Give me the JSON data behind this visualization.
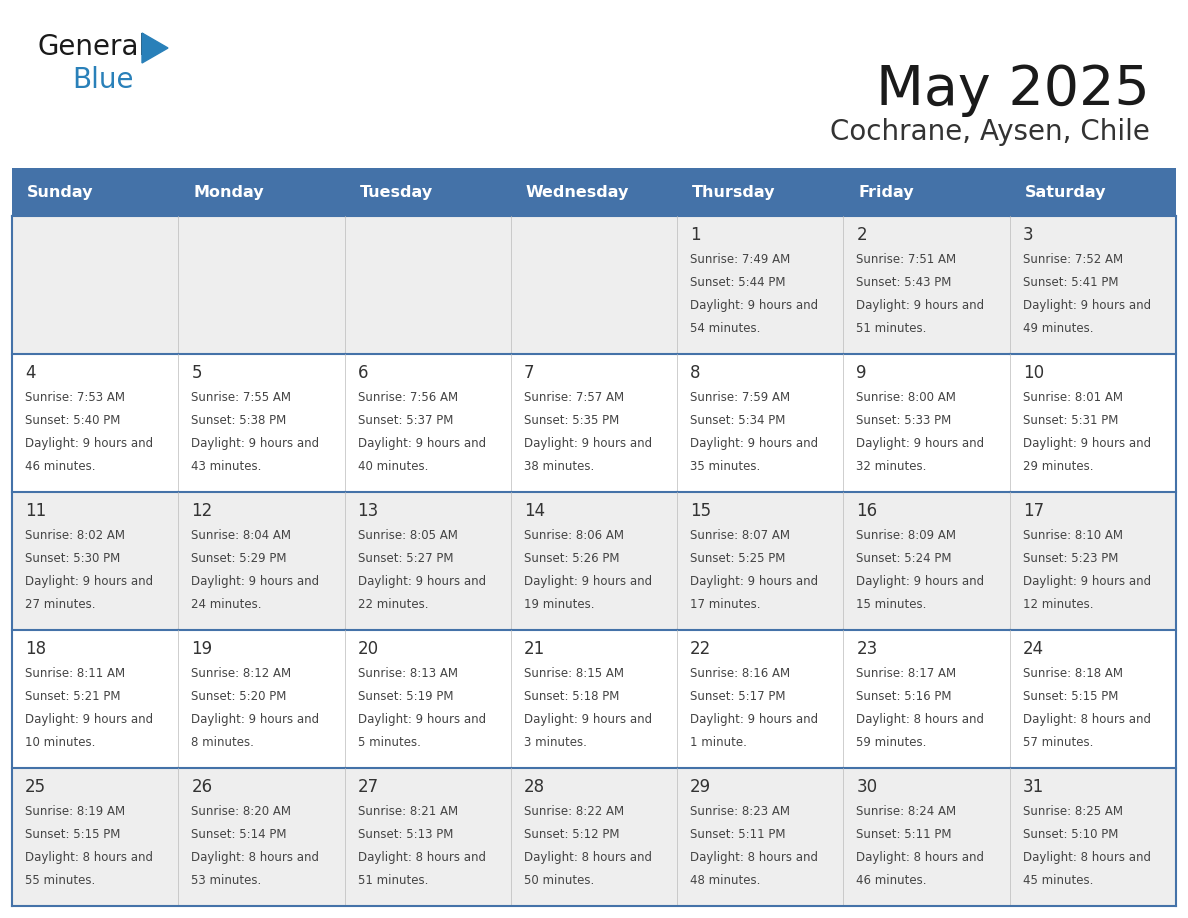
{
  "title": "May 2025",
  "subtitle": "Cochrane, Aysen, Chile",
  "days_of_week": [
    "Sunday",
    "Monday",
    "Tuesday",
    "Wednesday",
    "Thursday",
    "Friday",
    "Saturday"
  ],
  "header_bg": "#4472a8",
  "header_text": "#ffffff",
  "cell_bg_row0": "#eeeeee",
  "cell_bg_row1": "#ffffff",
  "cell_border": "#4472a8",
  "day_num_color": "#333333",
  "info_text_color": "#444444",
  "title_color": "#1a1a1a",
  "subtitle_color": "#333333",
  "logo_general_color": "#1a1a1a",
  "logo_blue_color": "#2980b9",
  "weeks": [
    [
      null,
      null,
      null,
      null,
      {
        "day": 1,
        "sunrise": "7:49 AM",
        "sunset": "5:44 PM",
        "daylight": "9 hours and 54 minutes."
      },
      {
        "day": 2,
        "sunrise": "7:51 AM",
        "sunset": "5:43 PM",
        "daylight": "9 hours and 51 minutes."
      },
      {
        "day": 3,
        "sunrise": "7:52 AM",
        "sunset": "5:41 PM",
        "daylight": "9 hours and 49 minutes."
      }
    ],
    [
      {
        "day": 4,
        "sunrise": "7:53 AM",
        "sunset": "5:40 PM",
        "daylight": "9 hours and 46 minutes."
      },
      {
        "day": 5,
        "sunrise": "7:55 AM",
        "sunset": "5:38 PM",
        "daylight": "9 hours and 43 minutes."
      },
      {
        "day": 6,
        "sunrise": "7:56 AM",
        "sunset": "5:37 PM",
        "daylight": "9 hours and 40 minutes."
      },
      {
        "day": 7,
        "sunrise": "7:57 AM",
        "sunset": "5:35 PM",
        "daylight": "9 hours and 38 minutes."
      },
      {
        "day": 8,
        "sunrise": "7:59 AM",
        "sunset": "5:34 PM",
        "daylight": "9 hours and 35 minutes."
      },
      {
        "day": 9,
        "sunrise": "8:00 AM",
        "sunset": "5:33 PM",
        "daylight": "9 hours and 32 minutes."
      },
      {
        "day": 10,
        "sunrise": "8:01 AM",
        "sunset": "5:31 PM",
        "daylight": "9 hours and 29 minutes."
      }
    ],
    [
      {
        "day": 11,
        "sunrise": "8:02 AM",
        "sunset": "5:30 PM",
        "daylight": "9 hours and 27 minutes."
      },
      {
        "day": 12,
        "sunrise": "8:04 AM",
        "sunset": "5:29 PM",
        "daylight": "9 hours and 24 minutes."
      },
      {
        "day": 13,
        "sunrise": "8:05 AM",
        "sunset": "5:27 PM",
        "daylight": "9 hours and 22 minutes."
      },
      {
        "day": 14,
        "sunrise": "8:06 AM",
        "sunset": "5:26 PM",
        "daylight": "9 hours and 19 minutes."
      },
      {
        "day": 15,
        "sunrise": "8:07 AM",
        "sunset": "5:25 PM",
        "daylight": "9 hours and 17 minutes."
      },
      {
        "day": 16,
        "sunrise": "8:09 AM",
        "sunset": "5:24 PM",
        "daylight": "9 hours and 15 minutes."
      },
      {
        "day": 17,
        "sunrise": "8:10 AM",
        "sunset": "5:23 PM",
        "daylight": "9 hours and 12 minutes."
      }
    ],
    [
      {
        "day": 18,
        "sunrise": "8:11 AM",
        "sunset": "5:21 PM",
        "daylight": "9 hours and 10 minutes."
      },
      {
        "day": 19,
        "sunrise": "8:12 AM",
        "sunset": "5:20 PM",
        "daylight": "9 hours and 8 minutes."
      },
      {
        "day": 20,
        "sunrise": "8:13 AM",
        "sunset": "5:19 PM",
        "daylight": "9 hours and 5 minutes."
      },
      {
        "day": 21,
        "sunrise": "8:15 AM",
        "sunset": "5:18 PM",
        "daylight": "9 hours and 3 minutes."
      },
      {
        "day": 22,
        "sunrise": "8:16 AM",
        "sunset": "5:17 PM",
        "daylight": "9 hours and 1 minute."
      },
      {
        "day": 23,
        "sunrise": "8:17 AM",
        "sunset": "5:16 PM",
        "daylight": "8 hours and 59 minutes."
      },
      {
        "day": 24,
        "sunrise": "8:18 AM",
        "sunset": "5:15 PM",
        "daylight": "8 hours and 57 minutes."
      }
    ],
    [
      {
        "day": 25,
        "sunrise": "8:19 AM",
        "sunset": "5:15 PM",
        "daylight": "8 hours and 55 minutes."
      },
      {
        "day": 26,
        "sunrise": "8:20 AM",
        "sunset": "5:14 PM",
        "daylight": "8 hours and 53 minutes."
      },
      {
        "day": 27,
        "sunrise": "8:21 AM",
        "sunset": "5:13 PM",
        "daylight": "8 hours and 51 minutes."
      },
      {
        "day": 28,
        "sunrise": "8:22 AM",
        "sunset": "5:12 PM",
        "daylight": "8 hours and 50 minutes."
      },
      {
        "day": 29,
        "sunrise": "8:23 AM",
        "sunset": "5:11 PM",
        "daylight": "8 hours and 48 minutes."
      },
      {
        "day": 30,
        "sunrise": "8:24 AM",
        "sunset": "5:11 PM",
        "daylight": "8 hours and 46 minutes."
      },
      {
        "day": 31,
        "sunrise": "8:25 AM",
        "sunset": "5:10 PM",
        "daylight": "8 hours and 45 minutes."
      }
    ]
  ]
}
